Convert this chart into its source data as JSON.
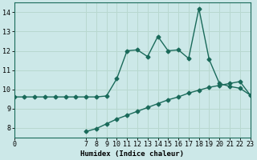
{
  "xlabel": "Humidex (Indice chaleur)",
  "ylabel": "",
  "background_color": "#cce8e8",
  "grid_color": "#b8d8d0",
  "line_color": "#1a6a5a",
  "x_curve1": [
    0,
    1,
    2,
    3,
    4,
    5,
    6,
    7,
    8,
    9,
    10,
    11,
    12,
    13,
    14,
    15,
    16,
    17,
    18,
    19,
    20,
    21,
    22,
    23
  ],
  "y_curve1": [
    9.6,
    9.6,
    9.6,
    9.6,
    9.6,
    9.6,
    9.6,
    9.6,
    9.6,
    9.65,
    10.55,
    12.0,
    12.05,
    11.7,
    12.75,
    12.0,
    12.05,
    11.6,
    14.2,
    11.55,
    10.3,
    10.15,
    10.05,
    9.7
  ],
  "x_curve2": [
    7,
    8,
    9,
    10,
    11,
    12,
    13,
    14,
    15,
    16,
    17,
    18,
    19,
    20,
    21,
    22,
    23
  ],
  "y_curve2": [
    7.8,
    7.95,
    8.2,
    8.45,
    8.65,
    8.85,
    9.05,
    9.25,
    9.45,
    9.6,
    9.8,
    9.95,
    10.1,
    10.2,
    10.3,
    10.4,
    9.7
  ],
  "xlim": [
    0,
    23
  ],
  "ylim": [
    7.5,
    14.5
  ],
  "yticks": [
    8,
    9,
    10,
    11,
    12,
    13,
    14
  ],
  "xticks": [
    0,
    7,
    8,
    9,
    10,
    11,
    12,
    13,
    14,
    15,
    16,
    17,
    18,
    19,
    20,
    21,
    22,
    23
  ],
  "markersize": 2.5,
  "linewidth": 1.0,
  "tick_fontsize": 6.0,
  "label_fontsize": 6.5
}
